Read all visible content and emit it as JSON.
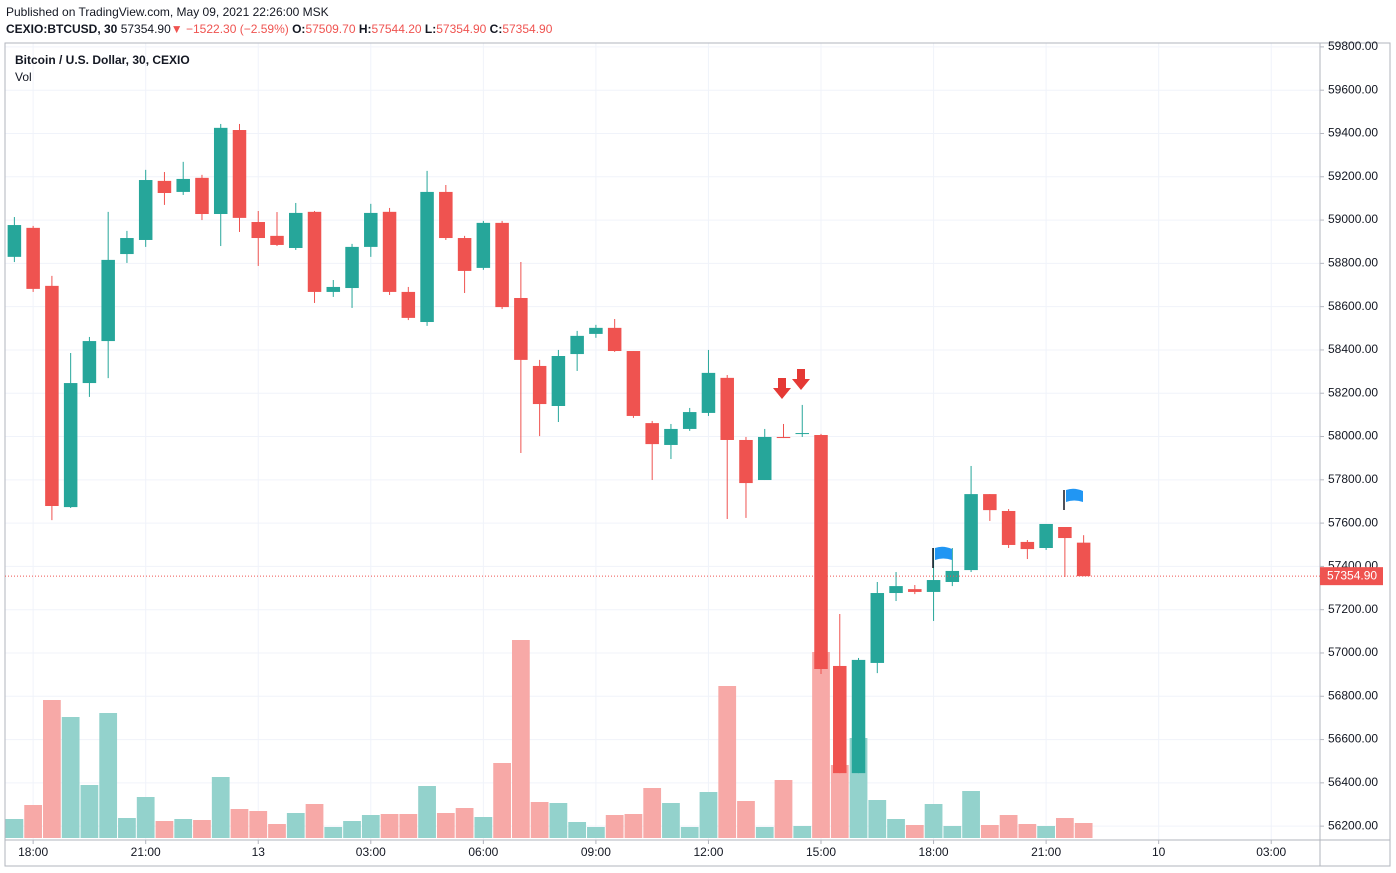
{
  "header": {
    "published": "Published on TradingView.com, May 09, 2021 22:26:00 MSK",
    "symbol": "CEXIO:BTCUSD, 30",
    "price": "57354.90",
    "arrow": "▼",
    "change": "−1522.30 (−2.59%)",
    "o_label": "O:",
    "o_value": "57509.70",
    "h_label": "H:",
    "h_value": "57544.20",
    "l_label": "L:",
    "l_value": "57354.90",
    "c_label": "C:",
    "c_value": "57354.90"
  },
  "chart_data": {
    "type": "candlestick",
    "title": "Bitcoin / U.S. Dollar, 30, CEXIO",
    "volume_label": "Vol",
    "up_color": "#26a69a",
    "down_color": "#ef5350",
    "up_volume_color": "#93d2cc",
    "down_volume_color": "#f7a9a7",
    "grid": true,
    "open": [
      58830,
      58964,
      58696,
      57674,
      58247,
      58441,
      58843,
      58908,
      59181,
      59130,
      59195,
      59028,
      59416,
      58991,
      58927,
      58871,
      59038,
      58668,
      58686,
      58876,
      59038,
      58668,
      58529,
      59130,
      58917,
      58779,
      58987,
      58640,
      58326,
      58141,
      58381,
      58474,
      58502,
      58395,
      58062,
      57961,
      58035,
      58109,
      58271,
      57984,
      57799,
      57998,
      58012,
      58007,
      56940,
      56445,
      56954,
      57277,
      57295,
      57282,
      57328,
      57383,
      57734,
      57656,
      57513,
      57485,
      57582,
      57509.7
    ],
    "high": [
      59014,
      58973,
      58742,
      58386,
      58460,
      59038,
      58950,
      59232,
      59222,
      59269,
      59209,
      59444,
      59444,
      59042,
      59037,
      59079,
      59042,
      58723,
      58890,
      59075,
      59056,
      58691,
      59227,
      59162,
      58927,
      58996,
      58996,
      58806,
      58354,
      58400,
      58488,
      58516,
      58543,
      58395,
      58072,
      58058,
      58132,
      58400,
      58284,
      57998,
      58035,
      58058,
      58146,
      58012,
      57180,
      56977,
      57328,
      57374,
      57314,
      57485,
      57485,
      57864,
      57734,
      57665,
      57522,
      57596,
      57582,
      57544.2
    ],
    "low": [
      58806,
      58668,
      57614,
      57670,
      58183,
      58270,
      58802,
      58876,
      59070,
      59116,
      59000,
      58880,
      58945,
      58788,
      58880,
      58862,
      58617,
      58645,
      58594,
      58830,
      58654,
      58538,
      58511,
      58908,
      58663,
      58770,
      58589,
      57924,
      58002,
      58067,
      58303,
      58456,
      58391,
      58086,
      57799,
      57896,
      58026,
      58095,
      57619,
      57624,
      57799,
      57993,
      57998,
      56903,
      56445,
      56445,
      56907,
      57240,
      57272,
      57148,
      57309,
      57374,
      57610,
      57485,
      57434,
      57476,
      57351,
      57354.9
    ],
    "close": [
      58977,
      58682,
      57679,
      58247,
      58441,
      58816,
      58917,
      59185,
      59125,
      59190,
      59028,
      59426,
      59010,
      58917,
      58885,
      59033,
      58668,
      58691,
      58876,
      59033,
      58668,
      58548,
      59130,
      58917,
      58765,
      58987,
      58598,
      58354,
      58150,
      58372,
      58465,
      58502,
      58395,
      58095,
      57965,
      58035,
      58113,
      58294,
      57984,
      57785,
      57998,
      57993,
      58016,
      56926,
      56445,
      56968,
      57277,
      57309,
      57282,
      57337,
      57379,
      57734,
      57660,
      57499,
      57480,
      57596,
      57531,
      57354.9
    ],
    "volume": [
      19,
      33,
      138,
      121,
      53,
      125,
      20,
      41,
      17,
      19,
      18,
      61,
      29,
      27,
      14,
      25,
      34,
      11,
      17,
      23,
      24,
      24,
      52,
      25,
      30,
      21,
      75,
      198,
      36,
      35,
      16,
      11,
      23,
      24,
      50,
      35,
      11,
      46,
      152,
      37,
      11,
      58,
      12,
      186,
      73,
      100,
      38,
      19,
      13,
      34,
      12,
      47,
      13,
      23,
      14,
      12,
      20,
      15
    ],
    "xlim": [
      -0.5,
      69.6
    ],
    "xticks": [
      {
        "value": 1,
        "label": "18:00"
      },
      {
        "value": 7,
        "label": "21:00"
      },
      13,
      {
        "value": 19,
        "label": "03:00"
      },
      {
        "value": 25,
        "label": "06:00"
      },
      {
        "value": 31,
        "label": "09:00"
      },
      {
        "value": 37,
        "label": "12:00"
      },
      {
        "value": 43,
        "label": "15:00"
      },
      {
        "value": 49,
        "label": "18:00"
      },
      {
        "value": 55,
        "label": "21:00"
      },
      {
        "value": 61,
        "label": "10"
      },
      {
        "value": 67,
        "label": "03:00"
      }
    ],
    "xtick_labels_override": null,
    "ylim": [
      56136,
      59818
    ],
    "yticks": [
      {
        "value": 56200,
        "label": "56200.00"
      },
      {
        "value": 56400,
        "label": "56400.00"
      },
      {
        "value": 56600,
        "label": "56600.00"
      },
      {
        "value": 56800,
        "label": "56800.00"
      },
      {
        "value": 57000,
        "label": "57000.00"
      },
      {
        "value": 57200,
        "label": "57200.00"
      },
      {
        "value": 57400,
        "label": "57400.00"
      },
      {
        "value": 57600,
        "label": "57600.00"
      },
      {
        "value": 57800,
        "label": "57800.00"
      },
      {
        "value": 58000,
        "label": "58000.00"
      },
      {
        "value": 58200,
        "label": "58200.00"
      },
      {
        "value": 58400,
        "label": "58400.00"
      },
      {
        "value": 58600,
        "label": "58600.00"
      },
      {
        "value": 58800,
        "label": "58800.00"
      },
      {
        "value": 59000,
        "label": "59000.00"
      },
      {
        "value": 59200,
        "label": "59200.00"
      },
      {
        "value": 59400,
        "label": "59400.00"
      },
      {
        "value": 59600,
        "label": "59600.00"
      },
      {
        "value": 59800,
        "label": "59800.00"
      }
    ],
    "last_price": {
      "value": 57354.9,
      "label": "57354.90"
    }
  }
}
